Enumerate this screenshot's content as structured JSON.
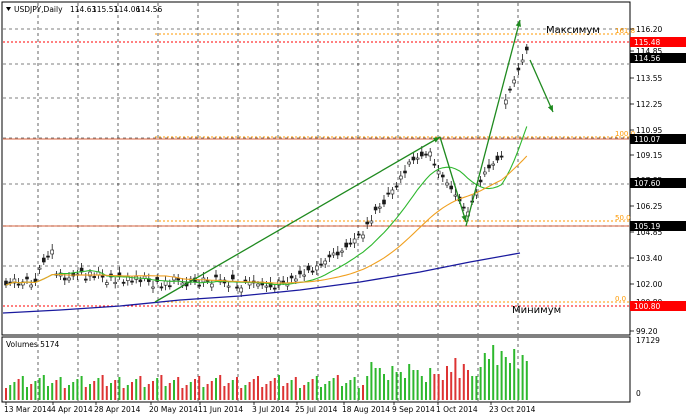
{
  "header": {
    "title": "USDJPY,Daily",
    "open": "114.63",
    "high": "115.51",
    "low": "114.06",
    "close": "114.56"
  },
  "volumes_label": "Volumes 5174",
  "annotations": {
    "maximum": "Максимум",
    "minimum": "Минимум"
  },
  "price_axis": [
    "116.20",
    "114.85",
    "113.55",
    "112.25",
    "110.95",
    "109.15",
    "107.85",
    "106.25",
    "104.85",
    "103.40",
    "102.00",
    "100.80",
    "99.20"
  ],
  "price_tags": [
    {
      "label": "115.48",
      "bg": "#ff0000"
    },
    {
      "label": "114.56",
      "bg": "#000000"
    },
    {
      "label": "110.07",
      "bg": "#000000"
    },
    {
      "label": "107.60",
      "bg": "#000000"
    },
    {
      "label": "105.19",
      "bg": "#000000"
    },
    {
      "label": "100.80",
      "bg": "#ff0000"
    }
  ],
  "fib_levels": [
    "161.8",
    "100.0",
    "50.0",
    "0.0"
  ],
  "volume_axis": [
    "17129",
    "0"
  ],
  "x_axis": [
    "13 Mar 2014",
    "4 Apr 2014",
    "28 Apr 2014",
    "20 May 2014",
    "11 Jun 2014",
    "3 Jul 2014",
    "25 Jul 2014",
    "18 Aug 2014",
    "9 Sep 2014",
    "1 Oct 2014",
    "23 Oct 2014"
  ],
  "colors": {
    "bull": "#1a1a1a",
    "bear": "#1a1a1a",
    "ma_fast": "#2eb82e",
    "ma_mid": "#f0a020",
    "ma_slow": "#1a1a9e",
    "arrow": "#1f8a1f",
    "fib": "#ff9900",
    "vol_up": "#2eb82e",
    "vol_down": "#dd3333"
  }
}
